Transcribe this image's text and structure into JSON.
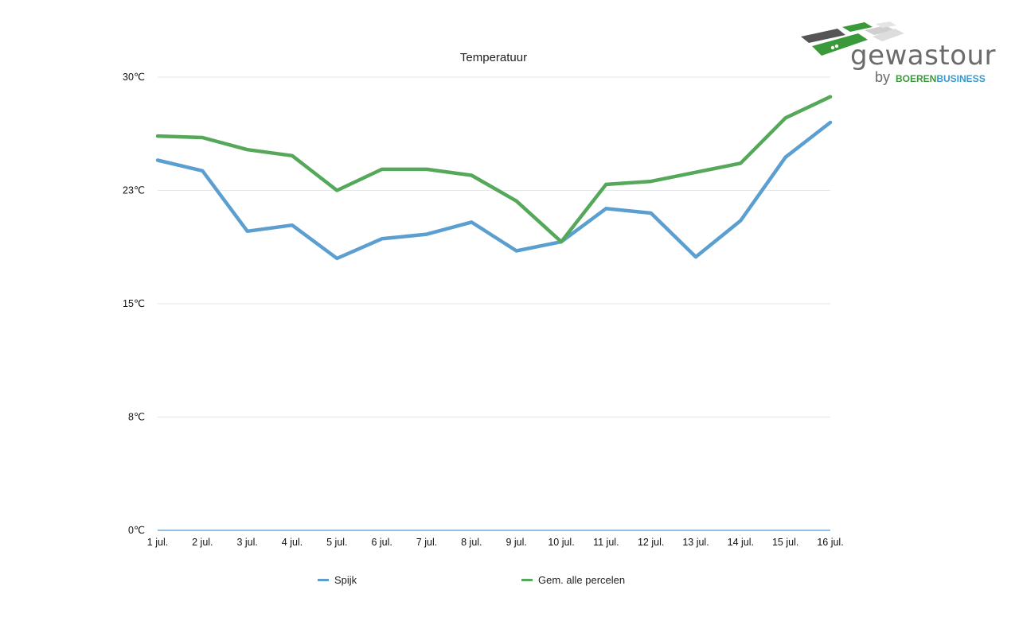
{
  "chart_data": {
    "type": "line",
    "title": "Temperatuur",
    "categories": [
      "1 jul.",
      "2 jul.",
      "3 jul.",
      "4 jul.",
      "5 jul.",
      "6 jul.",
      "7 jul.",
      "8 jul.",
      "9 jul.",
      "10 jul.",
      "11 jul.",
      "12 jul.",
      "13 jul.",
      "14 jul.",
      "15 jul.",
      "16 jul."
    ],
    "y_ticks": [
      "0℃",
      "8℃",
      "15℃",
      "23℃",
      "30℃"
    ],
    "ylim": [
      0,
      30
    ],
    "grid": true,
    "legend_position": "bottom",
    "series": [
      {
        "name": "Spijk",
        "color": "#5b9fd0",
        "values": [
          24.5,
          23.8,
          19.8,
          20.2,
          18.0,
          19.3,
          19.6,
          20.4,
          18.5,
          19.1,
          21.3,
          21.0,
          18.1,
          20.5,
          24.7,
          27.0
        ]
      },
      {
        "name": "Gem. alle percelen",
        "color": "#55a85a",
        "values": [
          26.1,
          26.0,
          25.2,
          24.8,
          22.5,
          23.9,
          23.9,
          23.5,
          21.8,
          19.1,
          22.9,
          23.1,
          23.7,
          24.3,
          27.3,
          28.7
        ]
      }
    ]
  },
  "logo": {
    "word": "gewastour",
    "by": "by",
    "brand_part1": "BOEREN",
    "brand_part2": "BUSINESS"
  }
}
